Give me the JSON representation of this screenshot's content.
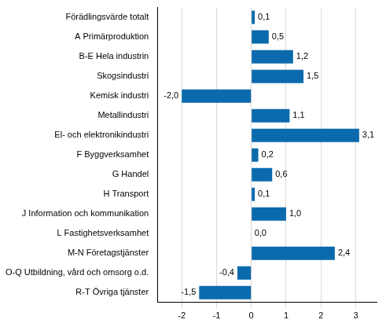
{
  "chart_data": {
    "type": "bar",
    "orientation": "horizontal",
    "categories": [
      "Förädlingsvärde totalt",
      "A Primärproduktion",
      "B-E Hela industrin",
      "Skogsindustri",
      "Kemisk industri",
      "Metallindustri",
      "El- och elektronikindustri",
      "F Byggverksamhet",
      "G Handel",
      "H Transport",
      "J Information och kommunikation",
      "L Fastighetsverksamhet",
      "M-N Företagstjänster",
      "O-Q Utbildning, vård och omsorg o.d.",
      "R-T Övriga tjänster"
    ],
    "values": [
      0.1,
      0.5,
      1.2,
      1.5,
      -2.0,
      1.1,
      3.1,
      0.2,
      0.6,
      0.1,
      1.0,
      0.0,
      2.4,
      -0.4,
      -1.5
    ],
    "value_labels": [
      "0,1",
      "0,5",
      "1,2",
      "1,5",
      "-2,0",
      "1,1",
      "3,1",
      "0,2",
      "0,6",
      "0,1",
      "1,0",
      "0,0",
      "2,4",
      "-0,4",
      "-1,5"
    ],
    "data_labels": true,
    "color": "#0a6aad",
    "xlim": [
      -2.7,
      3.6
    ],
    "xticks": [
      -2,
      -1,
      0,
      1,
      2,
      3
    ],
    "grid": true
  }
}
